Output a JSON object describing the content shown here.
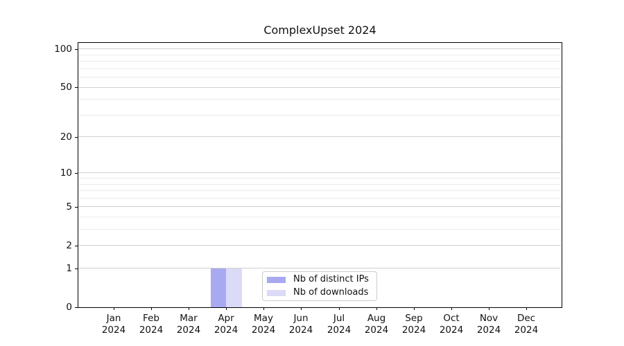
{
  "title": "ComplexUpset 2024",
  "chart_data": {
    "type": "bar",
    "title": "ComplexUpset 2024",
    "categories": [
      "Jan",
      "Feb",
      "Mar",
      "Apr",
      "May",
      "Jun",
      "Jul",
      "Aug",
      "Sep",
      "Oct",
      "Nov",
      "Dec"
    ],
    "x_year_label": "2024",
    "series": [
      {
        "name": "Nb of distinct IPs",
        "color": "#a9a9f2",
        "values": [
          0,
          0,
          0,
          1,
          0,
          0,
          0,
          0,
          0,
          0,
          0,
          0
        ]
      },
      {
        "name": "Nb of downloads",
        "color": "#dbdbf7",
        "values": [
          0,
          0,
          0,
          1,
          0,
          0,
          0,
          0,
          0,
          0,
          0,
          0
        ]
      }
    ],
    "xlabel": "",
    "ylabel": "",
    "yscale": "log1p",
    "y_major_ticks": [
      100,
      50,
      20,
      10,
      5,
      2,
      1,
      0
    ],
    "y_minor_gridlines": [
      90,
      80,
      70,
      60,
      40,
      30,
      9,
      8,
      7,
      6,
      4,
      3
    ],
    "ylim": [
      0,
      113
    ],
    "grid": "horizontal",
    "legend_position": "bottom-center-inside"
  },
  "colors": {
    "spine": "#000000",
    "grid_major": "#d0d0d0",
    "grid_minor": "#ebebeb",
    "background": "#ffffff"
  }
}
